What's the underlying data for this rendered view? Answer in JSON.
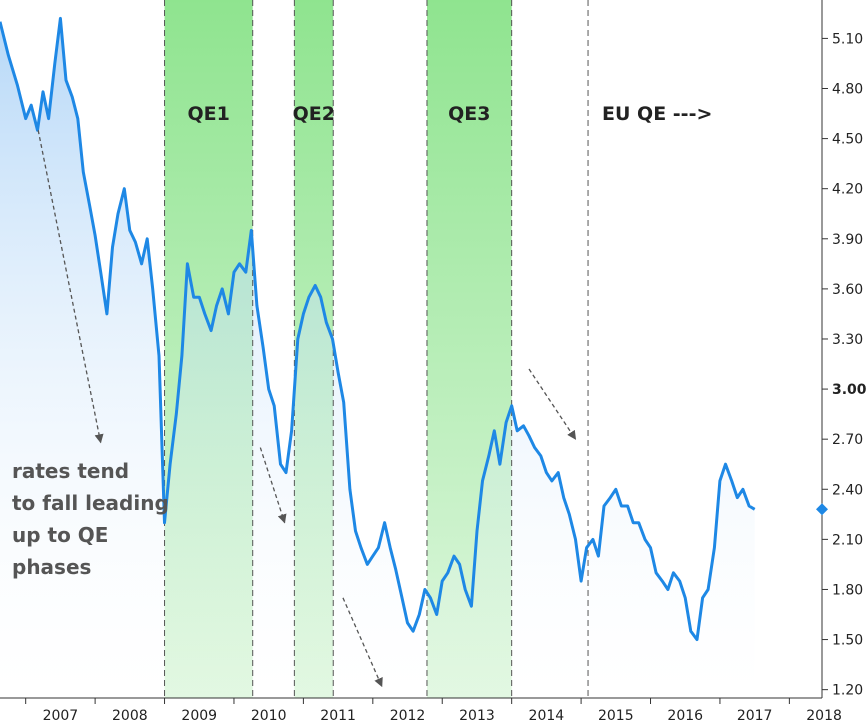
{
  "chart_data": {
    "type": "line",
    "title": "",
    "xlabel": "",
    "ylabel": "",
    "x_tick_labels": [
      "2007",
      "2008",
      "2009",
      "2010",
      "2011",
      "2012",
      "2013",
      "2014",
      "2015",
      "2016",
      "2017",
      "2018"
    ],
    "y_tick_labels": [
      "5.10",
      "4.80",
      "4.50",
      "4.20",
      "3.90",
      "3.60",
      "3.30",
      "3.00",
      "2.70",
      "2.40",
      "2.10",
      "1.80",
      "1.50",
      "1.20"
    ],
    "y_tick_values": [
      5.1,
      4.8,
      4.5,
      4.2,
      3.9,
      3.6,
      3.3,
      3.0,
      2.7,
      2.4,
      2.1,
      1.8,
      1.5,
      1.2
    ],
    "xlim": [
      2006.63,
      2018.47
    ],
    "ylim": [
      1.15,
      5.33
    ],
    "current_value": 2.28,
    "line_color": "#1e88e5",
    "fill_color": "#9ecbf5",
    "phase_color": "#9de89d",
    "phases": [
      {
        "label": "QE1",
        "start": 2009.0,
        "end": 2010.27
      },
      {
        "label": "QE2",
        "start": 2010.87,
        "end": 2011.43
      },
      {
        "label": "QE3",
        "start": 2012.78,
        "end": 2014.0
      }
    ],
    "markers": [
      {
        "label": "EU QE --->",
        "at": 2015.1
      }
    ],
    "annotation": [
      "rates tend",
      "to fall leading",
      "up to QE",
      "phases"
    ],
    "series": [
      {
        "x": [
          2006.63,
          2006.75,
          2006.88,
          2007.0,
          2007.08,
          2007.17,
          2007.25,
          2007.33,
          2007.42,
          2007.5,
          2007.58,
          2007.67,
          2007.75,
          2007.83,
          2007.92,
          2008.0,
          2008.08,
          2008.17,
          2008.25,
          2008.33,
          2008.42,
          2008.5,
          2008.58,
          2008.67,
          2008.75,
          2008.83,
          2008.92,
          2009.0,
          2009.08,
          2009.17,
          2009.25,
          2009.33,
          2009.42,
          2009.5,
          2009.58,
          2009.67,
          2009.75,
          2009.83,
          2009.92,
          2010.0,
          2010.08,
          2010.17,
          2010.25,
          2010.33,
          2010.42,
          2010.5,
          2010.58,
          2010.67,
          2010.75,
          2010.83,
          2010.92,
          2011.0,
          2011.08,
          2011.17,
          2011.25,
          2011.33,
          2011.42,
          2011.5,
          2011.58,
          2011.67,
          2011.75,
          2011.83,
          2011.92,
          2012.0,
          2012.08,
          2012.17,
          2012.25,
          2012.33,
          2012.42,
          2012.5,
          2012.58,
          2012.67,
          2012.75,
          2012.83,
          2012.92,
          2013.0,
          2013.08,
          2013.17,
          2013.25,
          2013.33,
          2013.42,
          2013.5,
          2013.58,
          2013.67,
          2013.75,
          2013.83,
          2013.92,
          2014.0,
          2014.08,
          2014.17,
          2014.25,
          2014.33,
          2014.42,
          2014.5,
          2014.58,
          2014.67,
          2014.75,
          2014.83,
          2014.92,
          2015.0,
          2015.08,
          2015.17,
          2015.25,
          2015.33,
          2015.42,
          2015.5,
          2015.58,
          2015.67,
          2015.75,
          2015.83,
          2015.92,
          2016.0,
          2016.08,
          2016.17,
          2016.25,
          2016.33,
          2016.42,
          2016.5,
          2016.58,
          2016.67,
          2016.75,
          2016.83,
          2016.92,
          2017.0,
          2017.08,
          2017.17,
          2017.25,
          2017.33,
          2017.42,
          2017.5
        ],
        "y": [
          5.2,
          5.0,
          4.82,
          4.62,
          4.7,
          4.55,
          4.78,
          4.62,
          4.95,
          5.22,
          4.85,
          4.75,
          4.62,
          4.3,
          4.1,
          3.92,
          3.7,
          3.45,
          3.85,
          4.05,
          4.2,
          3.95,
          3.88,
          3.75,
          3.9,
          3.6,
          3.2,
          2.2,
          2.55,
          2.85,
          3.2,
          3.75,
          3.55,
          3.55,
          3.45,
          3.35,
          3.5,
          3.6,
          3.45,
          3.7,
          3.75,
          3.7,
          3.95,
          3.5,
          3.25,
          3.0,
          2.9,
          2.55,
          2.5,
          2.75,
          3.3,
          3.45,
          3.55,
          3.62,
          3.55,
          3.4,
          3.3,
          3.1,
          2.92,
          2.4,
          2.15,
          2.05,
          1.95,
          2.0,
          2.05,
          2.2,
          2.05,
          1.92,
          1.75,
          1.6,
          1.55,
          1.65,
          1.8,
          1.75,
          1.65,
          1.85,
          1.9,
          2.0,
          1.95,
          1.8,
          1.7,
          2.15,
          2.45,
          2.6,
          2.75,
          2.55,
          2.8,
          2.9,
          2.75,
          2.78,
          2.72,
          2.65,
          2.6,
          2.5,
          2.45,
          2.5,
          2.35,
          2.25,
          2.1,
          1.85,
          2.05,
          2.1,
          2.0,
          2.3,
          2.35,
          2.4,
          2.3,
          2.3,
          2.2,
          2.2,
          2.1,
          2.05,
          1.9,
          1.85,
          1.8,
          1.9,
          1.85,
          1.75,
          1.55,
          1.5,
          1.75,
          1.8,
          2.05,
          2.45,
          2.55,
          2.45,
          2.35,
          2.4,
          2.3,
          2.28
        ]
      }
    ]
  }
}
